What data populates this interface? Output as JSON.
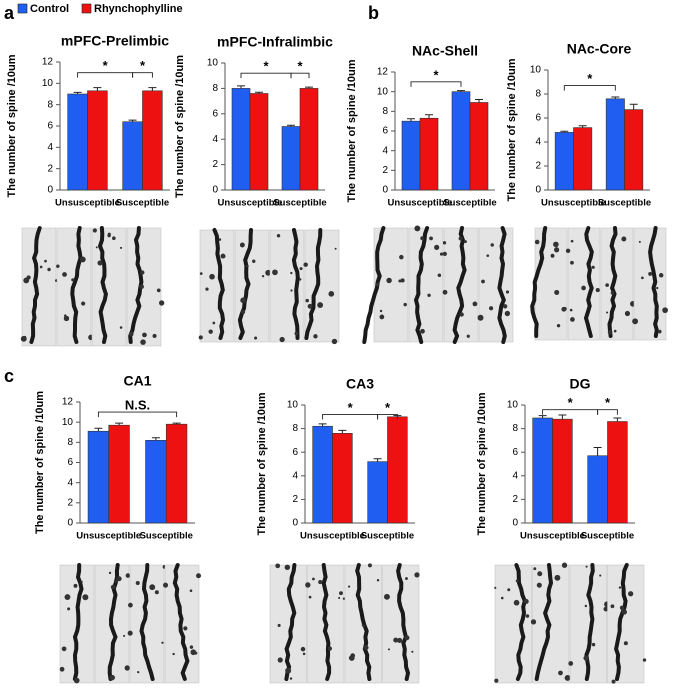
{
  "panel_labels": [
    "a",
    "b",
    "c"
  ],
  "chart_data": [
    {
      "type": "bar",
      "title": "mPFC-Prelimbic",
      "ylabel": "The number of spine /10um",
      "categories": [
        "Unsusceptible",
        "Susceptible"
      ],
      "series": [
        {
          "name": "Control",
          "color": "#1f5ef0",
          "values": [
            9.0,
            6.4
          ],
          "errors": [
            0.15,
            0.15
          ]
        },
        {
          "name": "Rhynchophylline",
          "color": "#ee1111",
          "values": [
            9.3,
            9.3
          ],
          "errors": [
            0.3,
            0.3
          ]
        }
      ],
      "ylim": [
        0,
        12
      ],
      "yticks": [
        0,
        2,
        4,
        6,
        8,
        10,
        12
      ],
      "annotations": [
        "*",
        "*"
      ]
    },
    {
      "type": "bar",
      "title": "mPFC-Infralimbic",
      "ylabel": "The number of spine /10um",
      "categories": [
        "Unsusceptible",
        "Susceptible"
      ],
      "series": [
        {
          "name": "Control",
          "color": "#1f5ef0",
          "values": [
            8.0,
            5.0
          ],
          "errors": [
            0.2,
            0.1
          ]
        },
        {
          "name": "Rhynchophylline",
          "color": "#ee1111",
          "values": [
            7.6,
            8.0
          ],
          "errors": [
            0.1,
            0.1
          ]
        }
      ],
      "ylim": [
        0,
        10
      ],
      "yticks": [
        0,
        2,
        4,
        6,
        8,
        10
      ],
      "annotations": [
        "*",
        "*"
      ]
    },
    {
      "type": "bar",
      "title": "NAc-Shell",
      "ylabel": "The number of spine /10um",
      "categories": [
        "Unsusceptible",
        "Susceptible"
      ],
      "series": [
        {
          "name": "Control",
          "color": "#1f5ef0",
          "values": [
            7.0,
            10.0
          ],
          "errors": [
            0.25,
            0.1
          ]
        },
        {
          "name": "Rhynchophylline",
          "color": "#ee1111",
          "values": [
            7.3,
            8.9
          ],
          "errors": [
            0.35,
            0.3
          ]
        }
      ],
      "ylim": [
        0,
        12
      ],
      "yticks": [
        0,
        2,
        4,
        6,
        8,
        10,
        12
      ],
      "annotations": [
        "*"
      ]
    },
    {
      "type": "bar",
      "title": "NAc-Core",
      "ylabel": "The number of spine /10um",
      "categories": [
        "Unsusceptible",
        "Susceptible"
      ],
      "series": [
        {
          "name": "Control",
          "color": "#1f5ef0",
          "values": [
            4.8,
            7.6
          ],
          "errors": [
            0.1,
            0.15
          ]
        },
        {
          "name": "Rhynchophylline",
          "color": "#ee1111",
          "values": [
            5.2,
            6.7
          ],
          "errors": [
            0.15,
            0.45
          ]
        }
      ],
      "ylim": [
        0,
        10
      ],
      "yticks": [
        0,
        2,
        4,
        6,
        8,
        10
      ],
      "annotations": [
        "*"
      ]
    },
    {
      "type": "bar",
      "title": "CA1",
      "ylabel": "The number of spine /10um",
      "categories": [
        "Unsusceptible",
        "Susceptible"
      ],
      "series": [
        {
          "name": "Control",
          "color": "#1f5ef0",
          "values": [
            9.1,
            8.2
          ],
          "errors": [
            0.3,
            0.25
          ]
        },
        {
          "name": "Rhynchophylline",
          "color": "#ee1111",
          "values": [
            9.7,
            9.8
          ],
          "errors": [
            0.2,
            0.1
          ]
        }
      ],
      "ylim": [
        0,
        12
      ],
      "yticks": [
        0,
        2,
        4,
        6,
        8,
        10,
        12
      ],
      "annotations": [
        "N.S."
      ]
    },
    {
      "type": "bar",
      "title": "CA3",
      "ylabel": "The number of spine /10um",
      "categories": [
        "Unsusceptible",
        "Susceptible"
      ],
      "series": [
        {
          "name": "Control",
          "color": "#1f5ef0",
          "values": [
            8.2,
            5.2
          ],
          "errors": [
            0.2,
            0.25
          ]
        },
        {
          "name": "Rhynchophylline",
          "color": "#ee1111",
          "values": [
            7.6,
            9.0
          ],
          "errors": [
            0.25,
            0.1
          ]
        }
      ],
      "ylim": [
        0,
        10
      ],
      "yticks": [
        0,
        2,
        4,
        6,
        8,
        10
      ],
      "annotations": [
        "*",
        "*"
      ]
    },
    {
      "type": "bar",
      "title": "DG",
      "ylabel": "The number of spine /10um",
      "categories": [
        "Unsusceptible",
        "Susceptible"
      ],
      "series": [
        {
          "name": "Control",
          "color": "#1f5ef0",
          "values": [
            8.9,
            5.7
          ],
          "errors": [
            0.2,
            0.7
          ]
        },
        {
          "name": "Rhynchophylline",
          "color": "#ee1111",
          "values": [
            8.8,
            8.6
          ],
          "errors": [
            0.35,
            0.3
          ]
        }
      ],
      "ylim": [
        0,
        10
      ],
      "yticks": [
        0,
        2,
        4,
        6,
        8,
        10
      ],
      "annotations": [
        "*",
        "*"
      ]
    }
  ]
}
